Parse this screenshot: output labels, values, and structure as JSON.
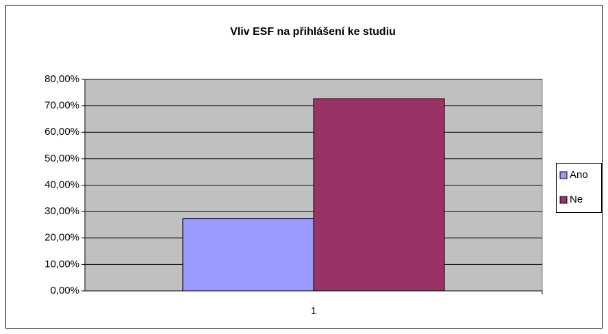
{
  "chart_data": {
    "type": "bar",
    "title": "Vliv ESF na přihlášení ke studiu",
    "categories": [
      "1"
    ],
    "series": [
      {
        "name": "Ano",
        "color": "#9999ff",
        "values": [
          27.3
        ]
      },
      {
        "name": "Ne",
        "color": "#993366",
        "values": [
          72.7
        ]
      }
    ],
    "ylim": [
      0,
      80
    ],
    "yticks": [
      {
        "value": 0,
        "label": "0,00%"
      },
      {
        "value": 10,
        "label": "10,00%"
      },
      {
        "value": 20,
        "label": "20,00%"
      },
      {
        "value": 30,
        "label": "30,00%"
      },
      {
        "value": 40,
        "label": "40,00%"
      },
      {
        "value": 50,
        "label": "50,00%"
      },
      {
        "value": 60,
        "label": "60,00%"
      },
      {
        "value": 70,
        "label": "70,00%"
      },
      {
        "value": 80,
        "label": "80,00%"
      }
    ],
    "grid": true,
    "legend": "right"
  }
}
